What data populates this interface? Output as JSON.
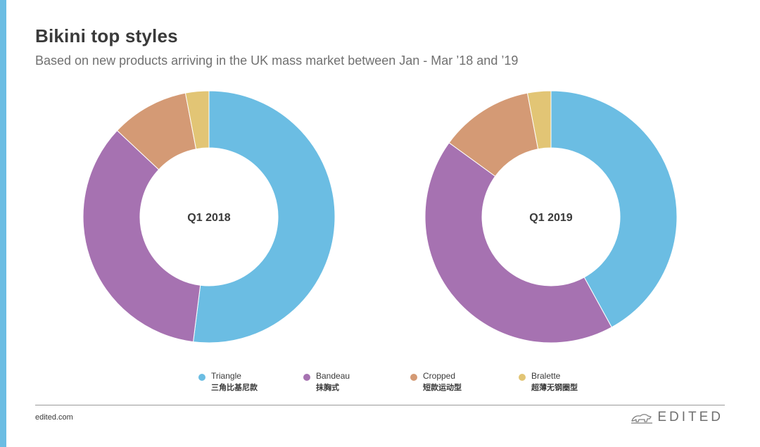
{
  "header": {
    "title": "Bikini top styles",
    "subtitle": "Based on new products arriving in the UK mass market between Jan - Mar ’18 and ’19"
  },
  "colors": {
    "accent_bar": "#6bbde3",
    "Triangle": "#6bbde3",
    "Bandeau": "#a672b1",
    "Cropped": "#d49a75",
    "Bralette": "#e2c575"
  },
  "chart_data": [
    {
      "type": "pie",
      "variant": "donut",
      "center_label": "Q1 2018",
      "categories": [
        "Triangle",
        "Bandeau",
        "Cropped",
        "Bralette"
      ],
      "values": [
        52,
        35,
        10,
        3
      ]
    },
    {
      "type": "pie",
      "variant": "donut",
      "center_label": "Q1 2019",
      "categories": [
        "Triangle",
        "Bandeau",
        "Cropped",
        "Bralette"
      ],
      "values": [
        42,
        43,
        12,
        3
      ]
    }
  ],
  "legend": [
    {
      "key": "Triangle",
      "label": "Triangle",
      "label_cn": "三角比基尼款"
    },
    {
      "key": "Bandeau",
      "label": "Bandeau",
      "label_cn": "抹胸式"
    },
    {
      "key": "Cropped",
      "label": "Cropped",
      "label_cn": "短款运动型"
    },
    {
      "key": "Bralette",
      "label": "Bralette",
      "label_cn": "超薄无钢圈型"
    }
  ],
  "footer": {
    "site": "edited.com",
    "brand": "EDITED",
    "brand_logo_icon": "polar-bear-logo-icon"
  }
}
